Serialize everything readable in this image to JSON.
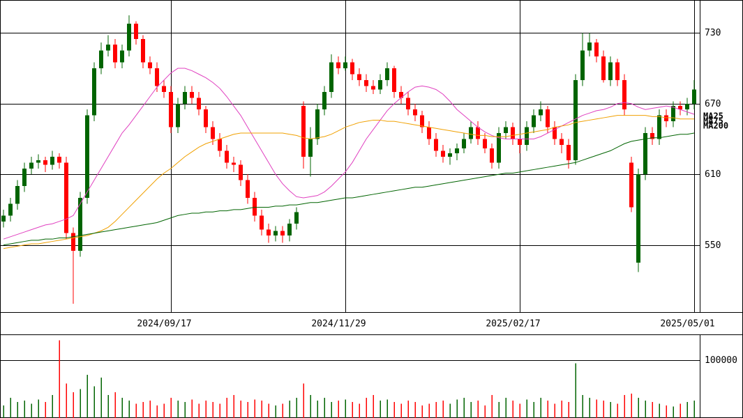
{
  "chart_data": [
    {
      "type": "candlestick",
      "categories": [
        null,
        null,
        null,
        null,
        null,
        null,
        null,
        null,
        null,
        null,
        null,
        null,
        null,
        null,
        null,
        null,
        null,
        null,
        null,
        null,
        null,
        null,
        null,
        null,
        "2024/09/17",
        null,
        null,
        null,
        null,
        null,
        null,
        null,
        null,
        null,
        null,
        null,
        null,
        null,
        null,
        null,
        null,
        null,
        null,
        null,
        null,
        null,
        null,
        null,
        null,
        "2024/11/29",
        null,
        null,
        null,
        null,
        null,
        null,
        null,
        null,
        null,
        null,
        null,
        null,
        null,
        null,
        null,
        null,
        null,
        null,
        null,
        null,
        null,
        null,
        null,
        null,
        "2025/02/17",
        null,
        null,
        null,
        null,
        null,
        null,
        null,
        null,
        null,
        null,
        null,
        null,
        null,
        null,
        null,
        null,
        null,
        null,
        null,
        null,
        null,
        null,
        null,
        null,
        "2025/05/01"
      ],
      "open": [
        570,
        575,
        585,
        600,
        615,
        620,
        622,
        618,
        625,
        620,
        560,
        545,
        590,
        660,
        700,
        715,
        720,
        705,
        715,
        738,
        725,
        705,
        700,
        685,
        680,
        650,
        670,
        680,
        675,
        665,
        650,
        640,
        630,
        620,
        618,
        605,
        590,
        575,
        563,
        558,
        562,
        558,
        568,
        668,
        625,
        640,
        665,
        680,
        705,
        700,
        705,
        695,
        690,
        685,
        682,
        690,
        700,
        680,
        675,
        665,
        660,
        650,
        640,
        630,
        625,
        628,
        632,
        640,
        650,
        640,
        632,
        620,
        645,
        650,
        640,
        635,
        650,
        660,
        665,
        650,
        640,
        635,
        622,
        690,
        715,
        722,
        710,
        690,
        705,
        690,
        620,
        535,
        610,
        645,
        640,
        660,
        655,
        668,
        665,
        670
      ],
      "high": [
        580,
        590,
        605,
        620,
        625,
        627,
        625,
        630,
        628,
        625,
        565,
        595,
        665,
        705,
        722,
        728,
        725,
        720,
        745,
        740,
        728,
        710,
        705,
        690,
        685,
        675,
        685,
        685,
        680,
        668,
        655,
        645,
        635,
        625,
        622,
        610,
        595,
        580,
        568,
        566,
        566,
        572,
        582,
        672,
        650,
        670,
        685,
        712,
        710,
        710,
        708,
        700,
        695,
        690,
        695,
        705,
        702,
        685,
        680,
        670,
        664,
        655,
        645,
        635,
        632,
        636,
        645,
        655,
        655,
        645,
        636,
        650,
        655,
        654,
        640,
        655,
        665,
        672,
        668,
        655,
        645,
        640,
        695,
        730,
        730,
        725,
        715,
        710,
        708,
        695,
        625,
        615,
        650,
        650,
        665,
        665,
        672,
        672,
        675,
        690
      ],
      "low": [
        565,
        570,
        580,
        595,
        610,
        615,
        612,
        614,
        615,
        555,
        500,
        540,
        585,
        655,
        695,
        710,
        700,
        700,
        710,
        720,
        700,
        695,
        680,
        675,
        645,
        645,
        665,
        670,
        660,
        645,
        635,
        625,
        615,
        612,
        600,
        585,
        570,
        558,
        552,
        553,
        552,
        553,
        563,
        615,
        608,
        635,
        660,
        675,
        695,
        698,
        690,
        685,
        680,
        678,
        678,
        685,
        675,
        670,
        660,
        655,
        645,
        635,
        625,
        620,
        618,
        622,
        628,
        636,
        635,
        628,
        615,
        615,
        640,
        635,
        628,
        630,
        645,
        655,
        645,
        635,
        628,
        615,
        618,
        685,
        710,
        705,
        688,
        685,
        685,
        660,
        578,
        527,
        605,
        635,
        635,
        650,
        650,
        660,
        660,
        665
      ],
      "close": [
        575,
        585,
        600,
        615,
        620,
        622,
        618,
        625,
        620,
        560,
        545,
        590,
        660,
        700,
        715,
        720,
        705,
        715,
        738,
        725,
        705,
        700,
        685,
        680,
        650,
        670,
        680,
        675,
        665,
        650,
        640,
        630,
        620,
        618,
        605,
        590,
        575,
        563,
        558,
        562,
        558,
        568,
        578,
        625,
        640,
        665,
        680,
        705,
        700,
        705,
        695,
        690,
        685,
        682,
        690,
        700,
        680,
        675,
        665,
        660,
        650,
        640,
        630,
        625,
        628,
        632,
        640,
        650,
        640,
        632,
        620,
        645,
        650,
        640,
        635,
        650,
        660,
        665,
        650,
        640,
        635,
        622,
        690,
        715,
        722,
        710,
        690,
        705,
        690,
        665,
        582,
        610,
        645,
        640,
        660,
        655,
        668,
        665,
        670,
        682
      ],
      "up_color": "#006400",
      "down_color": "#ff0000",
      "series": [
        {
          "name": "MA25",
          "color": "#e040c0",
          "values": [
            555,
            557,
            559,
            561,
            563,
            565,
            567,
            568,
            570,
            572,
            575,
            585,
            595,
            605,
            615,
            625,
            635,
            645,
            652,
            660,
            668,
            676,
            684,
            690,
            696,
            700,
            700,
            698,
            695,
            692,
            688,
            683,
            676,
            668,
            660,
            650,
            640,
            630,
            620,
            610,
            602,
            596,
            591,
            590,
            591,
            592,
            595,
            600,
            606,
            612,
            620,
            630,
            640,
            648,
            656,
            664,
            670,
            675,
            680,
            684,
            685,
            684,
            682,
            678,
            672,
            665,
            660,
            655,
            650,
            646,
            643,
            641,
            640,
            640,
            640,
            640,
            640,
            642,
            645,
            648,
            651,
            654,
            657,
            660,
            662,
            664,
            665,
            667,
            670,
            671,
            670,
            667,
            665,
            666,
            667,
            668,
            667,
            665,
            663,
            661
          ]
        },
        {
          "name": "MA75",
          "color": "#f0a000",
          "values": [
            547,
            548,
            549,
            550,
            551,
            551,
            552,
            553,
            554,
            555,
            556,
            557,
            558,
            560,
            562,
            565,
            570,
            576,
            582,
            588,
            594,
            600,
            606,
            611,
            615,
            620,
            625,
            629,
            633,
            636,
            638,
            640,
            642,
            644,
            645,
            645,
            645,
            645,
            645,
            645,
            645,
            644,
            643,
            641,
            640,
            641,
            642,
            644,
            647,
            650,
            652,
            654,
            655,
            656,
            656,
            655,
            655,
            654,
            653,
            652,
            651,
            650,
            649,
            648,
            647,
            646,
            645,
            644,
            643,
            643,
            642,
            642,
            642,
            643,
            644,
            645,
            646,
            647,
            648,
            650,
            651,
            652,
            654,
            655,
            656,
            657,
            658,
            659,
            660,
            660,
            660,
            660,
            660,
            659,
            659,
            658,
            658,
            657,
            657,
            657
          ]
        },
        {
          "name": "MA200",
          "color": "#006400",
          "values": [
            550,
            551,
            552,
            553,
            554,
            554,
            555,
            555,
            556,
            556,
            557,
            558,
            559,
            560,
            561,
            562,
            563,
            564,
            565,
            566,
            567,
            568,
            569,
            571,
            573,
            575,
            576,
            577,
            577,
            578,
            578,
            579,
            579,
            580,
            580,
            581,
            582,
            582,
            582,
            583,
            583,
            584,
            584,
            585,
            586,
            586,
            587,
            588,
            589,
            590,
            590,
            591,
            592,
            593,
            594,
            595,
            596,
            597,
            598,
            599,
            599,
            600,
            601,
            602,
            603,
            604,
            605,
            606,
            607,
            608,
            609,
            610,
            611,
            611,
            612,
            613,
            614,
            615,
            616,
            617,
            618,
            619,
            620,
            622,
            624,
            626,
            628,
            630,
            633,
            636,
            638,
            639,
            640,
            641,
            641,
            642,
            643,
            644,
            644,
            645
          ]
        }
      ],
      "ylim": [
        493,
        758
      ],
      "yticks": [
        550,
        610,
        670,
        730
      ],
      "grid": true
    },
    {
      "type": "bar",
      "values": [
        22000,
        35000,
        28000,
        30000,
        25000,
        32000,
        28000,
        40000,
        135000,
        60000,
        45000,
        50000,
        75000,
        55000,
        70000,
        40000,
        45000,
        35000,
        30000,
        25000,
        28000,
        30000,
        22000,
        25000,
        35000,
        30000,
        28000,
        32000,
        25000,
        30000,
        28000,
        25000,
        35000,
        40000,
        30000,
        28000,
        32000,
        30000,
        25000,
        22000,
        25000,
        30000,
        35000,
        60000,
        40000,
        30000,
        35000,
        28000,
        30000,
        32000,
        28000,
        25000,
        35000,
        40000,
        30000,
        32000,
        28000,
        25000,
        30000,
        28000,
        22000,
        25000,
        28000,
        30000,
        25000,
        32000,
        35000,
        28000,
        30000,
        22000,
        40000,
        28000,
        35000,
        30000,
        25000,
        32000,
        28000,
        35000,
        30000,
        25000,
        30000,
        28000,
        95000,
        40000,
        35000,
        32000,
        30000,
        28000,
        25000,
        40000,
        42000,
        35000,
        30000,
        28000,
        25000,
        22000,
        20000,
        25000,
        28000,
        30000
      ],
      "ylim": [
        0,
        145000
      ],
      "yticks": [
        100000
      ],
      "grid": true
    }
  ]
}
